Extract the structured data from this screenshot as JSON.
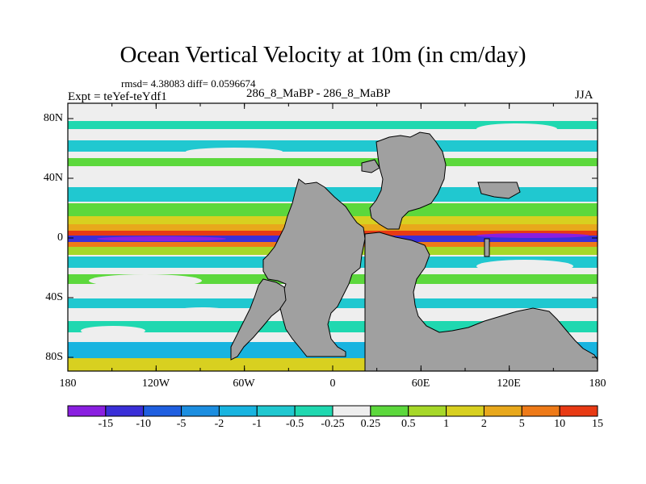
{
  "title": "Ocean Vertical Velocity at 10m (in cm/day)",
  "stats": "rmsd= 4.38083 diff= 0.0596674",
  "expt": "Expt = teYef-teYdf1",
  "runs": "286_8_MaBP - 286_8_MaBP",
  "season": "JJA",
  "lat_labels": [
    "80N",
    "40N",
    "0",
    "40S",
    "80S"
  ],
  "lon_labels": [
    "180",
    "120W",
    "60W",
    "0",
    "60E",
    "120E",
    "180"
  ],
  "colorbar": {
    "labels": [
      "-15",
      "-10",
      "-5",
      "-2",
      "-1",
      "-0.5",
      "-0.25",
      "0.25",
      "0.5",
      "1",
      "2",
      "5",
      "10",
      "15"
    ],
    "colors": [
      "#8a1fe0",
      "#3a2fd8",
      "#1f5fe0",
      "#1c8ee0",
      "#18b4e0",
      "#20c8d0",
      "#1fd8b0",
      "#eeeeee",
      "#5cd83c",
      "#a6d829",
      "#d8d020",
      "#e8a81c",
      "#ee7a18",
      "#e83a14"
    ]
  },
  "colors": {
    "land": "#a0a0a0",
    "equator": "#3a2fd8"
  }
}
